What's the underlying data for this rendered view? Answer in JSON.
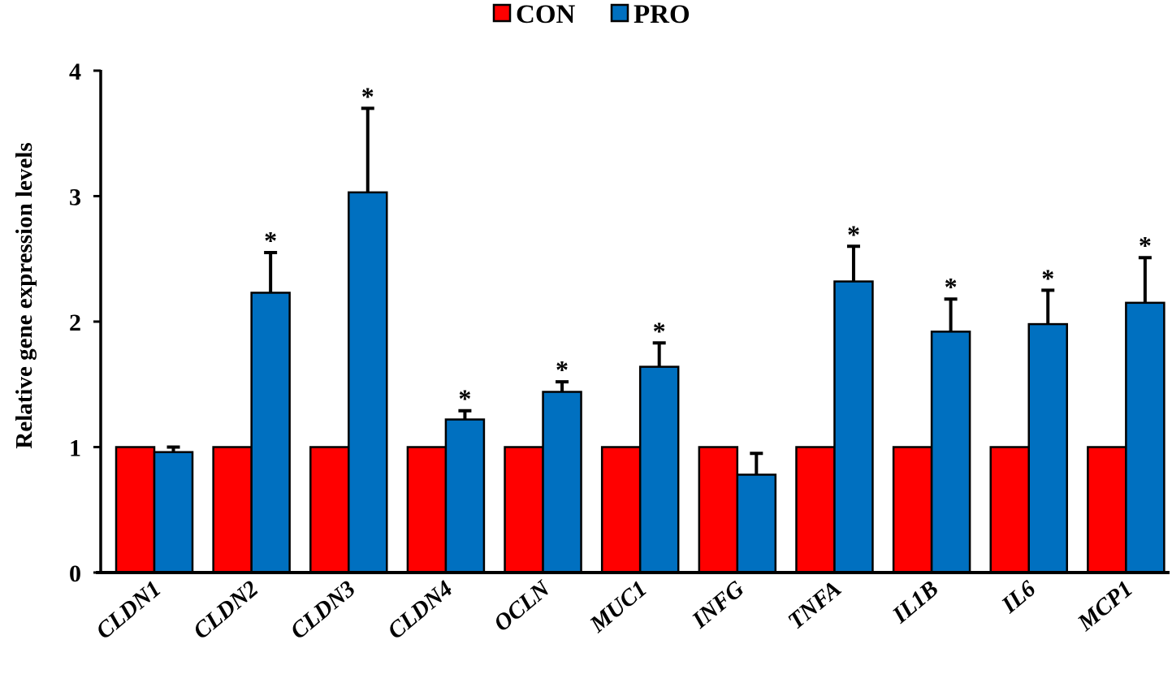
{
  "chart_data": {
    "type": "bar",
    "title": "",
    "xlabel": "",
    "ylabel": "Relative gene expression levels",
    "ylim": [
      0,
      4
    ],
    "yticks": [
      0,
      1,
      2,
      3,
      4
    ],
    "grid": false,
    "legend_position": "top-center",
    "categories": [
      "CLDN1",
      "CLDN2",
      "CLDN3",
      "CLDN4",
      "OCLN",
      "MUC1",
      "INFG",
      "TNFA",
      "IL1B",
      "IL6",
      "MCP1"
    ],
    "series": [
      {
        "name": "CON",
        "color": "#ff0000",
        "values": [
          1,
          1,
          1,
          1,
          1,
          1,
          1,
          1,
          1,
          1,
          1
        ],
        "error": [
          0,
          0,
          0,
          0,
          0,
          0,
          0,
          0,
          0,
          0,
          0
        ]
      },
      {
        "name": "PRO",
        "color": "#0070c0",
        "values": [
          0.96,
          2.23,
          3.03,
          1.22,
          1.44,
          1.64,
          0.78,
          2.32,
          1.92,
          1.98,
          2.15
        ],
        "error": [
          0.04,
          0.32,
          0.67,
          0.07,
          0.08,
          0.19,
          0.17,
          0.28,
          0.26,
          0.27,
          0.36
        ]
      }
    ],
    "significance": [
      "",
      "*",
      "*",
      "*",
      "*",
      "*",
      "",
      "*",
      "*",
      "*",
      "*"
    ]
  }
}
